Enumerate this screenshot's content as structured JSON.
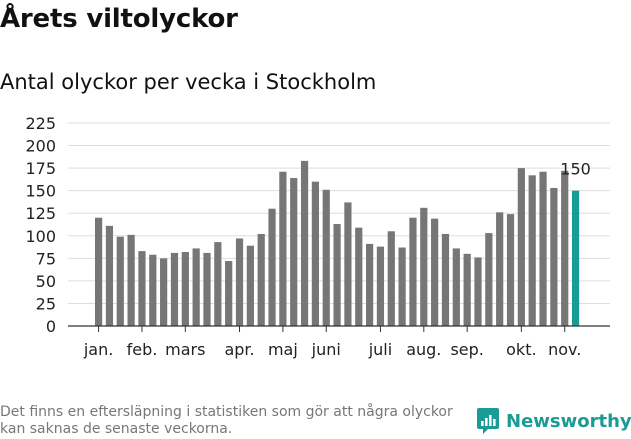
{
  "header": {
    "title": "Årets viltolyckor",
    "subtitle": "Antal olyckor per vecka i Stockholm"
  },
  "chart_data": {
    "type": "bar",
    "title": "Årets viltolyckor",
    "subtitle": "Antal olyckor per vecka i Stockholm",
    "xlabel": "",
    "ylabel": "",
    "ylim": [
      0,
      225
    ],
    "yticks": [
      0,
      25,
      50,
      75,
      100,
      125,
      150,
      175,
      200,
      225
    ],
    "grid": true,
    "values": [
      120,
      111,
      99,
      101,
      83,
      79,
      75,
      81,
      82,
      86,
      81,
      93,
      72,
      97,
      89,
      102,
      130,
      171,
      164,
      183,
      160,
      151,
      113,
      137,
      109,
      91,
      88,
      105,
      87,
      120,
      131,
      119,
      102,
      86,
      80,
      76,
      103,
      126,
      124,
      175,
      167,
      171,
      153,
      172,
      150
    ],
    "month_labels": [
      {
        "label": "jan.",
        "week": 1
      },
      {
        "label": "feb.",
        "week": 5
      },
      {
        "label": "mars",
        "week": 9
      },
      {
        "label": "apr.",
        "week": 14
      },
      {
        "label": "maj",
        "week": 18
      },
      {
        "label": "juni",
        "week": 22
      },
      {
        "label": "juli",
        "week": 27
      },
      {
        "label": "aug.",
        "week": 31
      },
      {
        "label": "sep.",
        "week": 35
      },
      {
        "label": "okt.",
        "week": 40
      },
      {
        "label": "nov.",
        "week": 44
      }
    ],
    "bar_color": "#767676",
    "highlight_color": "#1a9b93",
    "highlight_index": 44,
    "highlight_label": "150"
  },
  "footer": {
    "note": "Det finns en eftersläpning i statistiken som gör att några olyckor kan saknas de senaste veckorna.",
    "brand": "Newsworthy"
  }
}
